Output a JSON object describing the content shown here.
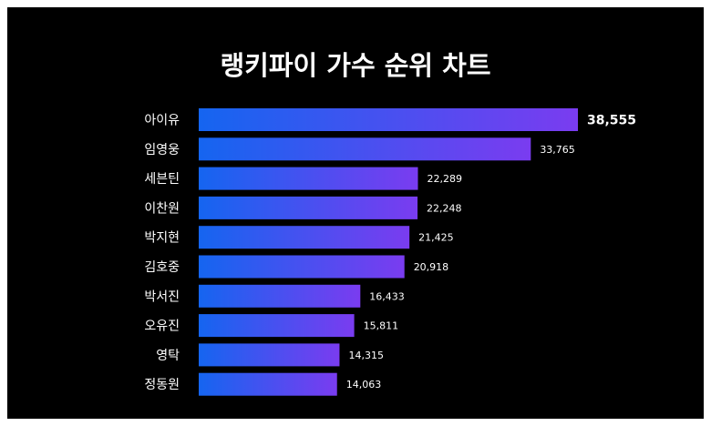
{
  "chart_data": {
    "type": "bar",
    "orientation": "horizontal",
    "title": "랭키파이 가수 순위 차트",
    "categories": [
      "아이유",
      "임영웅",
      "세븐틴",
      "이찬원",
      "박지현",
      "김호중",
      "박서진",
      "오유진",
      "영탁",
      "정동원"
    ],
    "values": [
      38555,
      33765,
      22289,
      22248,
      21425,
      20918,
      16433,
      15811,
      14315,
      14063
    ],
    "value_labels": [
      "38,555",
      "33,765",
      "22,289",
      "22,248",
      "21,425",
      "20,918",
      "16,433",
      "15,811",
      "14,315",
      "14,063"
    ],
    "xlim": [
      0,
      38555
    ],
    "grid": false,
    "legend": "none",
    "colors": {
      "background": "#000000",
      "bar_start": "#1565f0",
      "bar_end": "#7a3cf0",
      "text": "#ffffff"
    }
  }
}
